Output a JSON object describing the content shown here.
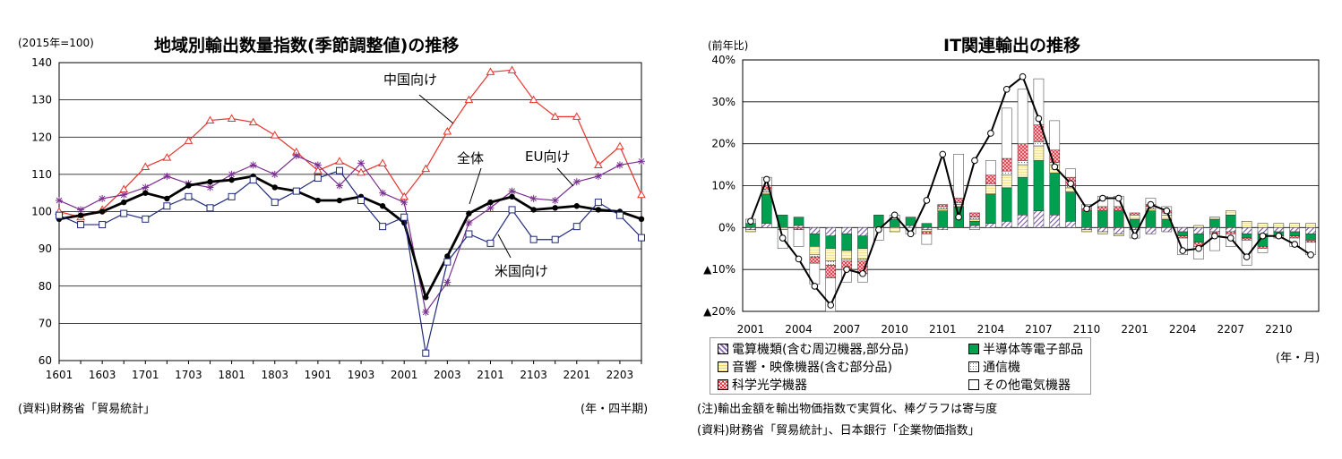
{
  "chart_data": [
    {
      "type": "line",
      "title": "地域別輸出数量指数(季節調整値)の推移",
      "ylabel": "(2015年=100)",
      "xlabel": "(年・四半期)",
      "source": "(資料)財務省「貿易統計」",
      "ylim": [
        60,
        140
      ],
      "yticks": [
        60,
        70,
        80,
        90,
        100,
        110,
        120,
        130,
        140
      ],
      "grid": true,
      "xtick_labels": [
        "1601",
        "1603",
        "1701",
        "1703",
        "1801",
        "1803",
        "1901",
        "1903",
        "2001",
        "2003",
        "2101",
        "2103",
        "2201",
        "2203"
      ],
      "x": [
        "1601",
        "1602",
        "1603",
        "1604",
        "1701",
        "1702",
        "1703",
        "1704",
        "1801",
        "1802",
        "1803",
        "1804",
        "1901",
        "1902",
        "1903",
        "1904",
        "2001",
        "2002",
        "2003",
        "2004",
        "2101",
        "2102",
        "2103",
        "2104",
        "2201",
        "2202",
        "2203",
        "2204"
      ],
      "series": [
        {
          "name": "中国向け",
          "color": "#e8332b",
          "marker": "triangle",
          "values": [
            100,
            98.5,
            100.5,
            106,
            112,
            114.5,
            119,
            124.5,
            125,
            124,
            120.5,
            116,
            111,
            113.5,
            110.5,
            113,
            104,
            111.5,
            121.5,
            130,
            137.5,
            138,
            130,
            125.5,
            125.5,
            112.5,
            117.5,
            104.5
          ]
        },
        {
          "name": "EU向け",
          "color": "#7a2f8f",
          "marker": "star",
          "values": [
            103,
            100.5,
            103.5,
            104.5,
            106.5,
            109.5,
            107.5,
            106.5,
            110,
            112.5,
            110,
            115,
            112.5,
            107,
            113,
            105,
            102.5,
            73,
            81,
            97,
            101,
            105.5,
            103.5,
            103,
            108,
            109.5,
            112.5,
            113.5
          ]
        },
        {
          "name": "全体",
          "color": "#000000",
          "marker": "dot",
          "values": [
            98,
            99,
            100,
            102.5,
            105,
            103.5,
            107,
            108,
            108.5,
            109.5,
            106.5,
            105.5,
            103,
            103,
            104,
            101.5,
            97,
            77,
            88,
            99.5,
            102.5,
            104,
            100.5,
            101,
            101.5,
            100.5,
            100,
            98
          ]
        },
        {
          "name": "米国向け",
          "color": "#1f2a7a",
          "marker": "square",
          "values": [
            99,
            96.5,
            96.5,
            99.5,
            98,
            101.5,
            104,
            101,
            104,
            108.5,
            102.5,
            105.5,
            109,
            111,
            103,
            96,
            98.5,
            62,
            86.5,
            94,
            91.5,
            100.5,
            92.5,
            92.5,
            96,
            102.5,
            99,
            93
          ]
        }
      ],
      "annotations": [
        "中国向け",
        "全体",
        "EU向け",
        "米国向け"
      ]
    },
    {
      "type": "bar",
      "stacked": true,
      "title": "IT関連輸出の推移",
      "ylabel": "(前年比)",
      "xlabel": "(年・月)",
      "ylim": [
        -20,
        40
      ],
      "ytick_labels": [
        "▲20%",
        "▲10%",
        "0%",
        "10%",
        "20%",
        "30%",
        "40%"
      ],
      "yticks": [
        -20,
        -10,
        0,
        10,
        20,
        30,
        40
      ],
      "grid": true,
      "xtick_labels": [
        "2001",
        "2004",
        "2007",
        "2010",
        "2101",
        "2104",
        "2107",
        "2110",
        "2201",
        "2204",
        "2207",
        "2210"
      ],
      "x": [
        "2001",
        "2002",
        "2003",
        "2004",
        "2005",
        "2006",
        "2007",
        "2008",
        "2009",
        "2010",
        "2011",
        "2012",
        "2101",
        "2102",
        "2103",
        "2104",
        "2105",
        "2106",
        "2107",
        "2108",
        "2109",
        "2110",
        "2111",
        "2112",
        "2201",
        "2202",
        "2203",
        "2204",
        "2205",
        "2206",
        "2207",
        "2208",
        "2209",
        "2210",
        "2211",
        "2212"
      ],
      "series": [
        {
          "name": "電算機類(含む周辺機器,部分品)",
          "color": "#8a6ab0",
          "pattern": "hatch",
          "values": [
            -0.5,
            1,
            0,
            0.5,
            -1.5,
            -2,
            -1.5,
            -2,
            0,
            0,
            0.5,
            -0.5,
            -0.5,
            0,
            0.5,
            1,
            1.5,
            3,
            4,
            3,
            1.5,
            -0.5,
            -1,
            -1.5,
            -0.5,
            -1.5,
            -1,
            -1,
            -1.5,
            -1,
            -1,
            -1.5,
            -1.5,
            -1,
            -1,
            -1.5
          ]
        },
        {
          "name": "半導体等電子部品",
          "color": "#00a050",
          "values": [
            1,
            7,
            3,
            2,
            -3,
            -3,
            -4,
            -3,
            3,
            2,
            2,
            1,
            4,
            5,
            1,
            7,
            8,
            9,
            12,
            10,
            7,
            4,
            4,
            4,
            2,
            4,
            2,
            -1,
            -2,
            2,
            3,
            -1,
            -3,
            -1,
            -1,
            -1.5
          ]
        },
        {
          "name": "音響・映像機器(含む部分品)",
          "color": "#fff3b0",
          "values": [
            -0.5,
            0.5,
            -0.5,
            0,
            -2,
            -3,
            -2,
            -2.5,
            0,
            -1,
            0,
            -0.5,
            0.5,
            0.5,
            0.5,
            2,
            3,
            3,
            3.5,
            2,
            1,
            -0.5,
            -0.5,
            -0.5,
            1,
            0.5,
            1,
            0,
            0.5,
            0.5,
            1,
            1.5,
            1,
            1,
            1,
            1
          ]
        },
        {
          "name": "通信機",
          "color": "#ffffff",
          "pattern": "dots",
          "values": [
            0,
            0.5,
            0,
            0,
            -0.5,
            -1,
            -0.5,
            -0.5,
            0,
            0,
            0,
            0,
            0.5,
            0.5,
            0.5,
            0.5,
            1,
            1,
            1,
            0.5,
            0.5,
            0,
            0,
            0,
            0,
            0.5,
            0.5,
            0,
            0,
            0,
            0,
            0,
            0,
            0,
            0,
            0
          ]
        },
        {
          "name": "科学光学機器",
          "color": "#f5c0c0",
          "pattern": "cross",
          "values": [
            0,
            1,
            0,
            -0.5,
            -1.5,
            -3,
            -2,
            -3,
            0,
            0,
            0,
            -0.5,
            0.5,
            1,
            1,
            2,
            3,
            4,
            4,
            3,
            2,
            0.5,
            1,
            1,
            0.5,
            0.5,
            0.5,
            -0.5,
            -1,
            -0.5,
            -0.5,
            -0.5,
            -0.5,
            -0.5,
            -0.5,
            -0.5
          ]
        },
        {
          "name": "その他電気機器",
          "color": "#ffffff",
          "values": [
            1,
            2,
            -4.5,
            -4,
            -5,
            -8,
            -3,
            -2,
            -3,
            1,
            -1.5,
            -2.5,
            0,
            10.5,
            -0.5,
            3.5,
            12,
            13,
            11,
            7,
            2,
            1,
            2.5,
            2.5,
            -2,
            1.5,
            1,
            -4,
            -3,
            -4,
            -3,
            -6,
            -1,
            0,
            -2,
            -3
          ]
        }
      ],
      "line": {
        "name": "IT関連輸出",
        "color": "#000000",
        "values": [
          1.5,
          11.5,
          -2.5,
          -7.5,
          -14,
          -18.5,
          -10,
          -11,
          -0.5,
          3,
          -1.5,
          6.5,
          17.5,
          2.5,
          16,
          22.5,
          33,
          36,
          26,
          14.5,
          10.5,
          4.5,
          7,
          7,
          -2,
          5.5,
          4,
          -5.5,
          -5,
          -2,
          -2.5,
          -7,
          -2,
          -2,
          -4,
          -6.5
        ]
      }
    }
  ],
  "left": {
    "unit": "(2015年=100)",
    "title": "地域別輸出数量指数(季節調整値)の推移",
    "source": "(資料)財務省「貿易統計」",
    "xunit": "(年・四半期)",
    "label_china": "中国向け",
    "label_total": "全体",
    "label_eu": "EU向け",
    "label_us": "米国向け"
  },
  "right": {
    "unit": "(前年比)",
    "title": "IT関連輸出の推移",
    "xunit": "(年・月)",
    "note1": "(注)輸出金額を輸出物価指数で実質化、棒グラフは寄与度",
    "note2": "(資料)財務省「貿易統計」、日本銀行「企業物価指数」",
    "legend": [
      "電算機類(含む周辺機器,部分品)",
      "半導体等電子部品",
      "音響・映像機器(含む部分品)",
      "通信機",
      "科学光学機器",
      "その他電気機器"
    ]
  }
}
